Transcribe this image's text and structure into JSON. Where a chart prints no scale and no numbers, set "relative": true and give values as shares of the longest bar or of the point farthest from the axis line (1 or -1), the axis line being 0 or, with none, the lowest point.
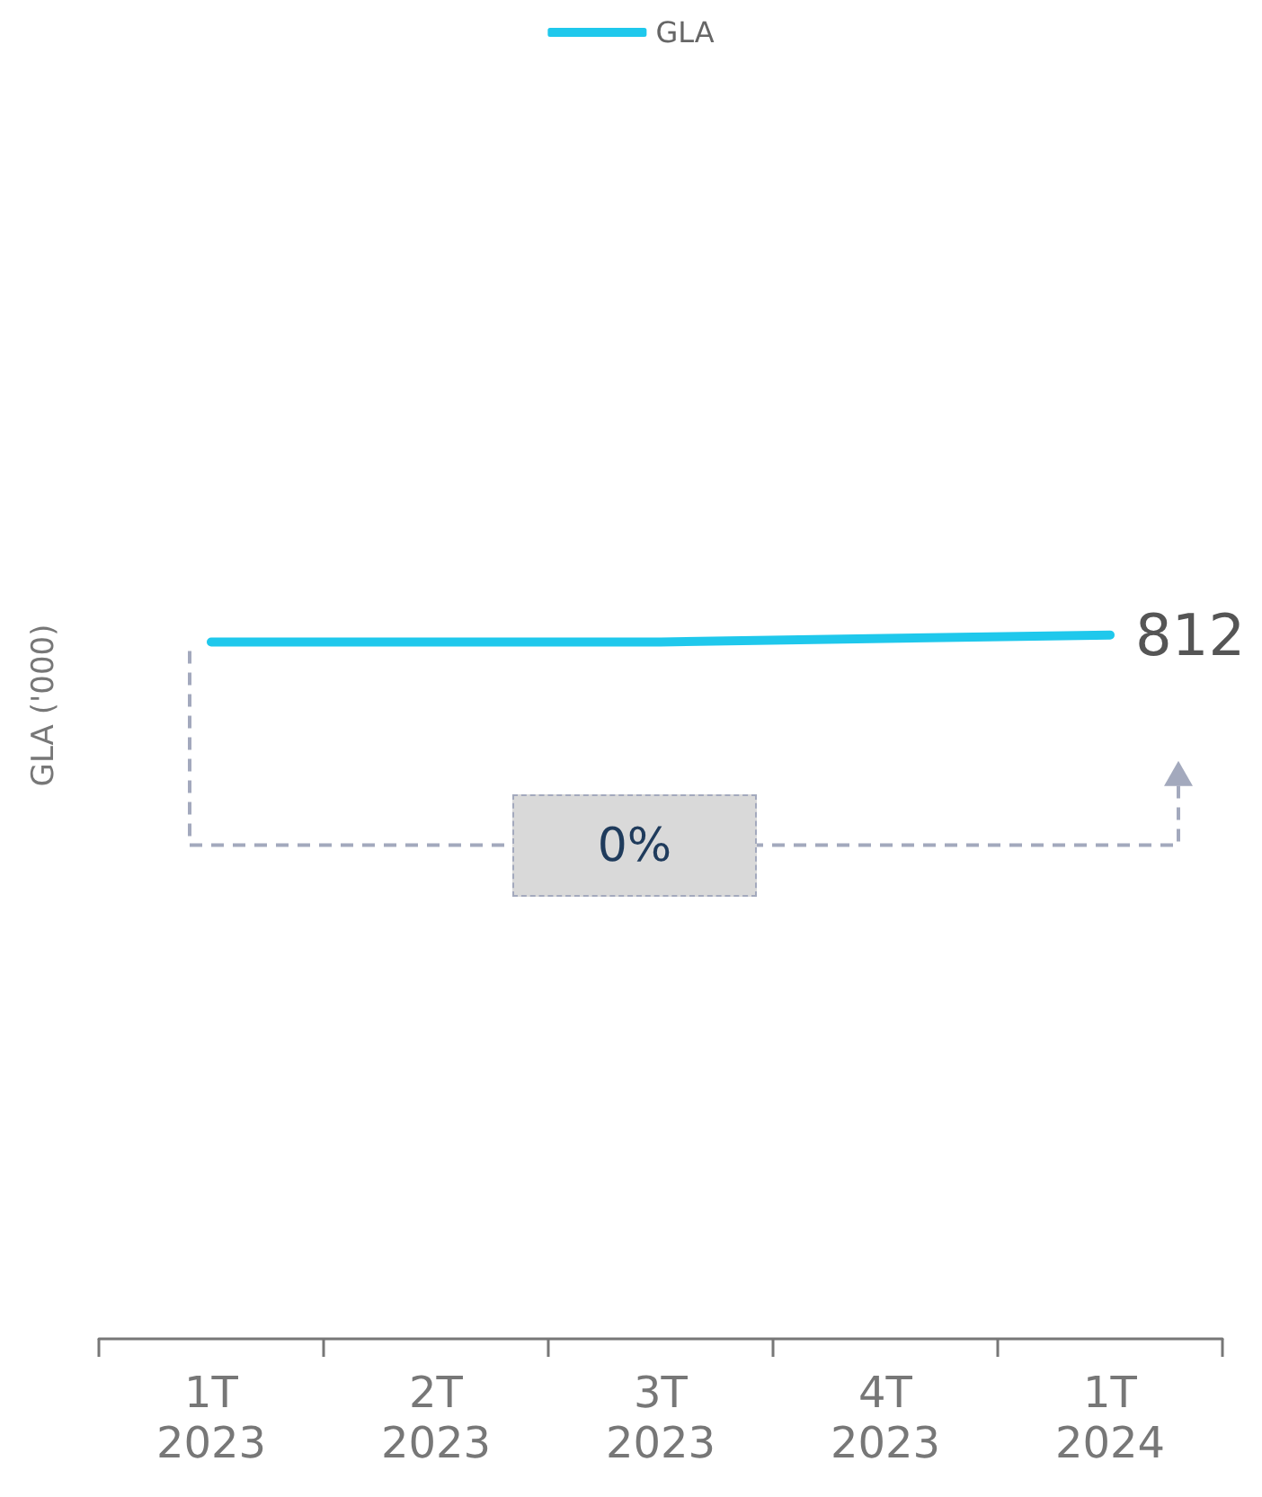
{
  "chart_data": {
    "type": "line",
    "relative": true,
    "ylabel": "GLA ('000)",
    "legend": "top",
    "categories": [
      "1T\n2023",
      "2T\n2023",
      "3T\n2023",
      "4T\n2023",
      "1T\n2024"
    ],
    "series": [
      {
        "name": "GLA",
        "color": "#1fc8ec",
        "values": [
          0.99,
          0.99,
          0.99,
          0.995,
          1
        ]
      }
    ],
    "annotations": [
      "0%",
      {
        "text": "812",
        "x": "1T\n2024",
        "y": 1
      }
    ],
    "grid": false,
    "marker": "none"
  }
}
